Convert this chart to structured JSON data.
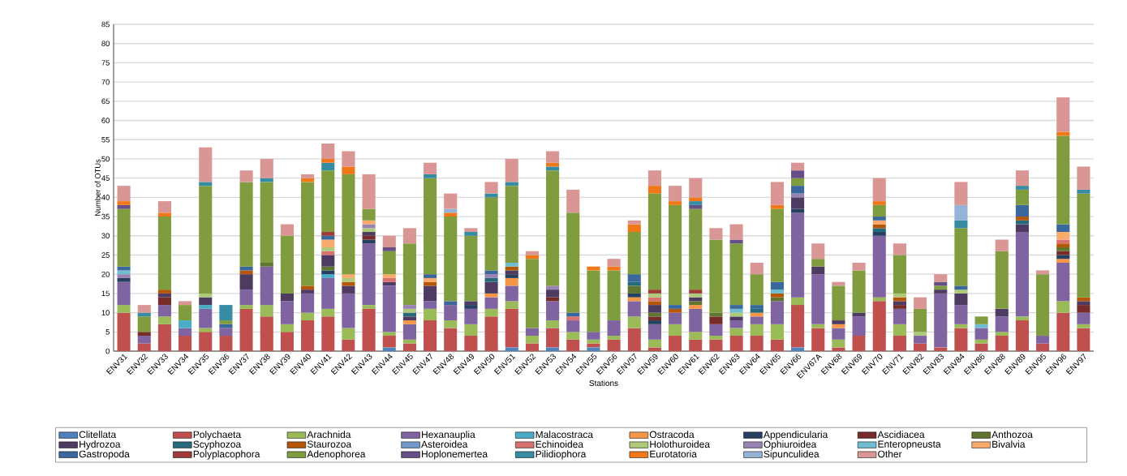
{
  "chart_data": {
    "type": "bar",
    "stacked": true,
    "xlabel": "Stations",
    "ylabel": "Number of OTUs",
    "categories": [
      "ENV31",
      "ENV32",
      "ENV33",
      "ENV34",
      "ENV35",
      "ENV36",
      "ENV37",
      "ENV38",
      "ENV39",
      "ENV40",
      "ENV41",
      "ENV42",
      "ENV43",
      "ENV44",
      "ENV45",
      "ENV47",
      "ENV48",
      "ENV49",
      "ENV50",
      "ENV51",
      "ENV52",
      "ENV53",
      "ENV54",
      "ENV55",
      "ENV56",
      "ENV57",
      "ENV59",
      "ENV60",
      "ENV61",
      "ENV62",
      "ENV63",
      "ENV64",
      "ENV65",
      "ENV66",
      "ENV67A",
      "ENV68",
      "ENV69",
      "ENV70",
      "ENV71",
      "ENV82",
      "ENV83",
      "ENV84",
      "ENV86",
      "ENV88",
      "ENV89",
      "ENV95",
      "ENV96",
      "ENV97"
    ],
    "ylim": [
      0,
      85
    ],
    "yticks": [
      0,
      5,
      10,
      15,
      20,
      25,
      30,
      35,
      40,
      45,
      50,
      55,
      60,
      65,
      70,
      75,
      80,
      85
    ],
    "grid": "y",
    "legend": "bottom",
    "series": [
      {
        "name": "Clitellata",
        "color": "#4f81bd",
        "values": [
          0,
          0,
          0,
          0,
          0,
          0,
          0,
          0,
          0,
          0,
          0,
          0,
          0,
          1,
          0,
          0,
          0,
          0,
          0,
          1,
          0,
          1,
          0,
          1,
          0,
          0,
          0,
          0,
          0,
          0,
          0,
          0,
          0,
          1,
          0,
          0,
          0,
          0,
          0,
          0,
          0,
          0,
          0,
          0,
          0,
          0,
          0,
          0
        ]
      },
      {
        "name": "Polychaeta",
        "color": "#c0504d",
        "values": [
          10,
          2,
          7,
          4,
          5,
          4,
          11,
          9,
          5,
          8,
          9,
          3,
          11,
          3,
          2,
          8,
          6,
          4,
          9,
          10,
          2,
          5,
          3,
          1,
          3,
          6,
          1,
          4,
          3,
          3,
          4,
          4,
          3,
          11,
          6,
          1,
          4,
          13,
          4,
          2,
          1,
          6,
          2,
          4,
          8,
          2,
          10,
          6
        ]
      },
      {
        "name": "Arachnida",
        "color": "#9bbb59",
        "values": [
          2,
          0,
          2,
          0,
          1,
          0,
          1,
          3,
          2,
          2,
          2,
          3,
          1,
          1,
          1,
          3,
          2,
          3,
          2,
          2,
          2,
          2,
          2,
          1,
          1,
          3,
          2,
          3,
          2,
          1,
          2,
          3,
          4,
          2,
          1,
          2,
          0,
          1,
          3,
          0,
          0,
          1,
          1,
          1,
          1,
          0,
          3,
          1
        ]
      },
      {
        "name": "Hexanauplia",
        "color": "#8064a2",
        "values": [
          6,
          2,
          3,
          2,
          5,
          2,
          4,
          10,
          6,
          5,
          8,
          9,
          16,
          12,
          4,
          2,
          4,
          4,
          3,
          4,
          2,
          5,
          3,
          2,
          4,
          4,
          4,
          3,
          6,
          3,
          2,
          2,
          6,
          22,
          13,
          3,
          5,
          16,
          4,
          2,
          14,
          5,
          3,
          4,
          22,
          2,
          10,
          3
        ]
      },
      {
        "name": "Malacostraca",
        "color": "#4bacc6",
        "values": [
          0,
          0,
          0,
          2,
          1,
          0,
          0,
          0,
          0,
          0,
          1,
          0,
          0,
          0,
          0,
          0,
          0,
          0,
          0,
          0,
          0,
          0,
          0,
          0,
          0,
          0,
          0,
          0,
          0,
          0,
          0,
          0,
          0,
          0,
          0,
          0,
          0,
          0,
          0,
          0,
          0,
          0,
          0,
          0,
          0,
          0,
          0,
          0
        ]
      },
      {
        "name": "Ostracoda",
        "color": "#f79646",
        "values": [
          0,
          0,
          0,
          0,
          0,
          0,
          0,
          0,
          0,
          0,
          0,
          0,
          0,
          0,
          1,
          0,
          0,
          0,
          1,
          2,
          0,
          0,
          0,
          0,
          0,
          1,
          0,
          0,
          1,
          0,
          0,
          1,
          0,
          0,
          0,
          1,
          0,
          0,
          0,
          0,
          0,
          0,
          0,
          0,
          0,
          0,
          1,
          0
        ]
      },
      {
        "name": "Appendicularia",
        "color": "#254061",
        "values": [
          1,
          0,
          0,
          0,
          0,
          0,
          0,
          0,
          0,
          0,
          1,
          0,
          1,
          0,
          0,
          0,
          0,
          1,
          0,
          1,
          0,
          0,
          0,
          0,
          0,
          1,
          1,
          0,
          0,
          0,
          0,
          0,
          0,
          1,
          0,
          0,
          0,
          1,
          0,
          0,
          0,
          0,
          0,
          0,
          0,
          0,
          1,
          0
        ]
      },
      {
        "name": "Ascidiacea",
        "color": "#772c2a",
        "values": [
          0,
          1,
          2,
          0,
          0,
          0,
          0,
          0,
          0,
          0,
          0,
          0,
          1,
          0,
          0,
          0,
          0,
          0,
          0,
          0,
          0,
          1,
          0,
          0,
          0,
          0,
          1,
          0,
          0,
          2,
          0,
          0,
          0,
          0,
          0,
          0,
          0,
          0,
          1,
          0,
          0,
          0,
          0,
          0,
          0,
          0,
          1,
          2
        ]
      },
      {
        "name": "Anthozoa",
        "color": "#5f7530",
        "values": [
          0,
          0,
          0,
          0,
          0,
          0,
          0,
          1,
          0,
          0,
          1,
          0,
          0,
          0,
          0,
          0,
          0,
          0,
          0,
          0,
          0,
          0,
          0,
          0,
          0,
          2,
          1,
          0,
          1,
          1,
          0,
          0,
          1,
          0,
          0,
          0,
          0,
          0,
          0,
          0,
          0,
          0,
          0,
          0,
          0,
          0,
          1,
          0
        ]
      },
      {
        "name": "Hydrozoa",
        "color": "#4d3b62",
        "values": [
          0,
          0,
          1,
          0,
          2,
          0,
          4,
          0,
          2,
          1,
          3,
          2,
          1,
          1,
          1,
          4,
          0,
          1,
          3,
          1,
          0,
          2,
          0,
          0,
          0,
          0,
          2,
          0,
          1,
          0,
          1,
          0,
          0,
          3,
          2,
          1,
          1,
          0,
          1,
          0,
          1,
          3,
          0,
          2,
          2,
          0,
          0,
          1
        ]
      },
      {
        "name": "Scyphozoa",
        "color": "#276a7c",
        "values": [
          0,
          0,
          0,
          0,
          0,
          0,
          0,
          0,
          0,
          0,
          0,
          0,
          0,
          0,
          1,
          0,
          0,
          0,
          1,
          0,
          0,
          0,
          0,
          0,
          0,
          1,
          0,
          0,
          0,
          0,
          0,
          1,
          0,
          0,
          0,
          0,
          0,
          1,
          0,
          0,
          0,
          0,
          0,
          0,
          1,
          0,
          0,
          0
        ]
      },
      {
        "name": "Staurozoa",
        "color": "#b65708",
        "values": [
          0,
          0,
          1,
          0,
          0,
          0,
          1,
          0,
          0,
          1,
          0,
          1,
          0,
          0,
          0,
          1,
          0,
          0,
          0,
          1,
          0,
          0,
          0,
          0,
          0,
          0,
          1,
          1,
          0,
          0,
          0,
          0,
          1,
          0,
          0,
          0,
          0,
          1,
          1,
          0,
          0,
          0,
          0,
          0,
          1,
          0,
          1,
          1
        ]
      },
      {
        "name": "Asteroidea",
        "color": "#729aca",
        "values": [
          0,
          0,
          0,
          0,
          0,
          0,
          0,
          0,
          0,
          0,
          0,
          0,
          0,
          0,
          0,
          0,
          0,
          0,
          0,
          0,
          0,
          0,
          0,
          0,
          0,
          0,
          0,
          0,
          0,
          0,
          0,
          0,
          0,
          0,
          0,
          0,
          0,
          0,
          0,
          0,
          0,
          0,
          0,
          0,
          0,
          0,
          0,
          0
        ]
      },
      {
        "name": "Echinoidea",
        "color": "#d9716e",
        "values": [
          0,
          0,
          0,
          0,
          0,
          0,
          0,
          0,
          0,
          0,
          1,
          0,
          0,
          1,
          0,
          0,
          0,
          0,
          0,
          0,
          0,
          0,
          1,
          0,
          0,
          0,
          1,
          0,
          0,
          0,
          0,
          0,
          0,
          0,
          0,
          0,
          0,
          0,
          0,
          0,
          0,
          0,
          0,
          0,
          0,
          0,
          1,
          0
        ]
      },
      {
        "name": "Holothuroidea",
        "color": "#afc97a",
        "values": [
          0,
          0,
          0,
          0,
          1,
          0,
          0,
          0,
          0,
          0,
          1,
          1,
          1,
          0,
          1,
          0,
          0,
          0,
          0,
          0,
          0,
          0,
          0,
          0,
          0,
          0,
          1,
          0,
          1,
          0,
          1,
          0,
          0,
          0,
          0,
          0,
          0,
          0,
          1,
          1,
          0,
          1,
          0,
          0,
          0,
          0,
          0,
          0
        ]
      },
      {
        "name": "Ophiuroidea",
        "color": "#9983b5",
        "values": [
          1,
          0,
          0,
          0,
          0,
          0,
          0,
          0,
          0,
          0,
          0,
          0,
          1,
          0,
          1,
          0,
          0,
          0,
          1,
          0,
          0,
          1,
          0,
          0,
          0,
          0,
          0,
          0,
          0,
          0,
          0,
          0,
          0,
          1,
          0,
          0,
          0,
          0,
          0,
          0,
          0,
          0,
          0,
          0,
          0,
          0,
          0,
          0
        ]
      },
      {
        "name": "Enteropneusta",
        "color": "#6fbdd1",
        "values": [
          1,
          0,
          0,
          0,
          0,
          0,
          0,
          0,
          0,
          0,
          0,
          0,
          0,
          0,
          0,
          0,
          0,
          0,
          0,
          1,
          0,
          0,
          0,
          0,
          0,
          0,
          0,
          0,
          0,
          0,
          1,
          0,
          1,
          0,
          0,
          0,
          0,
          0,
          0,
          0,
          0,
          0,
          1,
          0,
          0,
          0,
          0,
          0
        ]
      },
      {
        "name": "Bivalvia",
        "color": "#f9ab6b",
        "values": [
          0,
          0,
          0,
          0,
          0,
          0,
          0,
          0,
          0,
          0,
          2,
          1,
          1,
          1,
          0,
          1,
          0,
          0,
          0,
          0,
          0,
          0,
          0,
          0,
          0,
          0,
          0,
          0,
          0,
          0,
          0,
          0,
          0,
          0,
          0,
          0,
          0,
          1,
          0,
          0,
          0,
          0,
          0,
          0,
          0,
          0,
          2,
          0
        ]
      },
      {
        "name": "Gastropoda",
        "color": "#3a679c",
        "values": [
          1,
          0,
          0,
          0,
          0,
          1,
          1,
          0,
          0,
          0,
          1,
          0,
          0,
          0,
          0,
          1,
          1,
          0,
          1,
          0,
          0,
          0,
          1,
          0,
          0,
          2,
          0,
          1,
          0,
          0,
          1,
          1,
          2,
          2,
          0,
          0,
          0,
          1,
          0,
          0,
          0,
          1,
          0,
          0,
          3,
          0,
          2,
          0
        ]
      },
      {
        "name": "Polyplacophora",
        "color": "#9e3b38",
        "values": [
          0,
          0,
          0,
          0,
          0,
          0,
          0,
          0,
          0,
          0,
          1,
          0,
          0,
          0,
          0,
          0,
          0,
          0,
          0,
          0,
          0,
          0,
          0,
          0,
          0,
          0,
          1,
          0,
          1,
          0,
          0,
          0,
          0,
          0,
          0,
          0,
          0,
          0,
          0,
          0,
          0,
          0,
          0,
          0,
          0,
          0,
          0,
          0
        ]
      },
      {
        "name": "Adenophorea",
        "color": "#7f9c3f",
        "values": [
          15,
          4,
          19,
          4,
          28,
          1,
          22,
          21,
          15,
          27,
          16,
          26,
          3,
          6,
          16,
          25,
          22,
          17,
          19,
          20,
          18,
          30,
          26,
          16,
          13,
          11,
          25,
          26,
          21,
          19,
          16,
          8,
          19,
          2,
          2,
          9,
          11,
          3,
          10,
          6,
          1,
          15,
          2,
          15,
          4,
          16,
          23,
          27
        ]
      },
      {
        "name": "Hoplonemertea",
        "color": "#664f86",
        "values": [
          1,
          0,
          0,
          0,
          0,
          0,
          0,
          0,
          0,
          0,
          0,
          0,
          0,
          1,
          0,
          0,
          0,
          0,
          0,
          0,
          0,
          0,
          0,
          0,
          0,
          0,
          0,
          0,
          1,
          0,
          1,
          0,
          0,
          2,
          0,
          0,
          0,
          0,
          0,
          0,
          1,
          0,
          0,
          0,
          0,
          0,
          0,
          0
        ]
      },
      {
        "name": "Pilidiophora",
        "color": "#358ca3",
        "values": [
          0,
          1,
          0,
          0,
          1,
          4,
          0,
          1,
          0,
          0,
          2,
          0,
          0,
          0,
          0,
          1,
          0,
          1,
          1,
          1,
          0,
          1,
          0,
          0,
          0,
          0,
          0,
          0,
          1,
          0,
          0,
          0,
          0,
          0,
          0,
          0,
          0,
          0,
          0,
          0,
          0,
          2,
          0,
          0,
          1,
          0,
          0,
          1
        ]
      },
      {
        "name": "Eurotatoria",
        "color": "#f07818",
        "values": [
          1,
          0,
          1,
          0,
          0,
          0,
          0,
          0,
          0,
          1,
          1,
          2,
          0,
          0,
          0,
          0,
          1,
          0,
          0,
          0,
          1,
          1,
          0,
          1,
          1,
          2,
          2,
          1,
          1,
          0,
          0,
          0,
          1,
          0,
          0,
          0,
          0,
          1,
          0,
          0,
          0,
          0,
          0,
          0,
          0,
          0,
          1,
          0
        ]
      },
      {
        "name": "Sipunculidea",
        "color": "#95b3d7",
        "values": [
          0,
          0,
          0,
          0,
          0,
          0,
          0,
          0,
          0,
          0,
          0,
          0,
          0,
          0,
          0,
          0,
          1,
          0,
          0,
          0,
          0,
          0,
          0,
          0,
          0,
          0,
          0,
          0,
          0,
          0,
          0,
          0,
          0,
          0,
          0,
          0,
          0,
          0,
          0,
          0,
          0,
          4,
          0,
          0,
          0,
          0,
          0,
          0
        ]
      },
      {
        "name": "Other",
        "color": "#d99694",
        "values": [
          4,
          2,
          3,
          1,
          9,
          0,
          3,
          5,
          3,
          1,
          4,
          4,
          9,
          3,
          4,
          3,
          4,
          1,
          3,
          6,
          1,
          3,
          6,
          0,
          2,
          1,
          4,
          4,
          5,
          3,
          4,
          3,
          6,
          2,
          4,
          1,
          2,
          6,
          3,
          3,
          2,
          6,
          0,
          3,
          4,
          1,
          9,
          6
        ]
      }
    ]
  }
}
